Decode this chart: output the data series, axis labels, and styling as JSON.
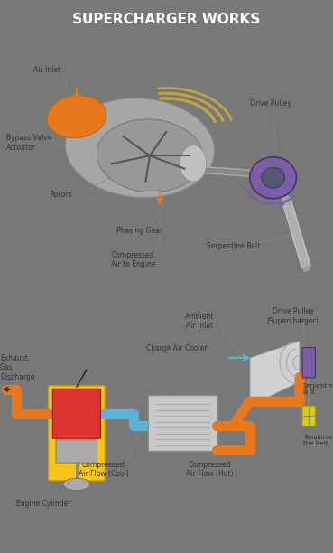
{
  "title": "SUPERCHARGER WORKS",
  "title_color": "#ffffff",
  "title_bg": "#787878",
  "bg_top": "#f0f0f0",
  "bg_bottom": "#d8d8d8",
  "panel1_bg": "#ffffff",
  "panel2_bg": "#f5f5f5",
  "labels_top": [
    "Air Inlet",
    "Bypass Valve\nActuator",
    "Rotors",
    "Phasing Gear",
    "Compressed\nAir to Engine",
    "Drive Pulley",
    "Serpentine Belt"
  ],
  "labels_bottom": [
    "Exhaust\nGas\nDischarge",
    "Engine Cylinder",
    "Compressed\nAir Flow (Cool)",
    "Charge Air Cooler",
    "Compressed\nAir Flow (Hot)",
    "Ambient\nAir Inlet",
    "Drive Pulley\n(Supercharger)",
    "Serpentine\nBelt",
    "Tensioning\nthe Belt"
  ],
  "orange": "#e8781e",
  "blue_arrow": "#5ab4d6",
  "red": "#cc2222",
  "yellow": "#f5c518",
  "purple": "#7b5ea7",
  "gray_dark": "#555555",
  "gray_med": "#888888",
  "gray_light": "#cccccc",
  "gold": "#c8a020",
  "label_fontsize": 5.5,
  "title_fontsize": 11
}
